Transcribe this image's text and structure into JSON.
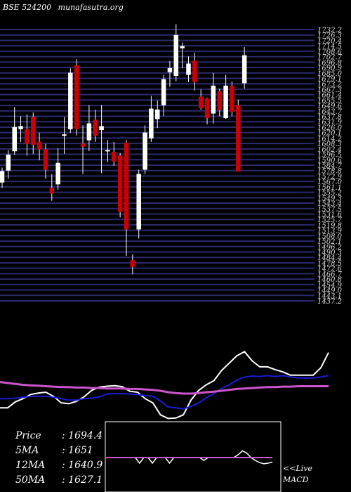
{
  "header": {
    "exchange_code": "BSE 524200",
    "site": "munafasutra.org"
  },
  "stats": [
    {
      "label": "Price",
      "value": "1694.4"
    },
    {
      "label": "5MA",
      "value": "1651"
    },
    {
      "label": "12MA",
      "value": "1640.9"
    },
    {
      "label": "50MA",
      "value": "1627.1"
    }
  ],
  "macd_label": {
    "line1": "<<Live",
    "line2": "MACD"
  },
  "colors": {
    "background": "#000000",
    "grid": "#2b2b6e",
    "up_candle": "#ffffff",
    "down_candle": "#cc0000",
    "ma_short": "#ffffff",
    "ma_mid": "#1b1bd6",
    "ma_long": "#cc55cc",
    "macd_box": "#ffffff"
  },
  "chart_data": [
    {
      "type": "candlestick",
      "title": "",
      "y_ticks": [
        "1732.2",
        "1726.3",
        "1720.4",
        "1714.5",
        "1708.6",
        "1702.7",
        "1696.8",
        "1690.9",
        "1685.0",
        "1679.1",
        "1673.2",
        "1667.3",
        "1661.4",
        "1655.5",
        "1649.6",
        "1643.7",
        "1637.8",
        "1631.9",
        "1626.0",
        "1620.1",
        "1614.2",
        "1608.3",
        "1602.4",
        "1596.5",
        "1590.6",
        "1584.7",
        "1578.8",
        "1572.9",
        "1567.0",
        "1561.1",
        "1555.2",
        "1549.3",
        "1543.4",
        "1537.5",
        "1531.6",
        "1525.7",
        "1519.8",
        "1513.9",
        "1508.0",
        "1502.1",
        "1496.2",
        "1490.3",
        "1484.4",
        "1478.5",
        "1472.6",
        "1466.7",
        "1460.8",
        "1454.9",
        "1449.0",
        "1443.1",
        "1437.2"
      ],
      "ylim": [
        1437.2,
        1732.2
      ],
      "candles": [
        {
          "open": 1566,
          "close": 1578,
          "high": 1582,
          "low": 1560
        },
        {
          "open": 1579,
          "close": 1596,
          "high": 1601,
          "low": 1570
        },
        {
          "open": 1600,
          "close": 1626,
          "high": 1648,
          "low": 1596
        },
        {
          "open": 1624,
          "close": 1627,
          "high": 1638,
          "low": 1610
        },
        {
          "open": 1624,
          "close": 1608,
          "high": 1640,
          "low": 1595
        },
        {
          "open": 1637,
          "close": 1607,
          "high": 1642,
          "low": 1597
        },
        {
          "open": 1610,
          "close": 1602,
          "high": 1620,
          "low": 1590
        },
        {
          "open": 1602,
          "close": 1580,
          "high": 1608,
          "low": 1570
        },
        {
          "open": 1560,
          "close": 1554,
          "high": 1575,
          "low": 1546
        },
        {
          "open": 1564,
          "close": 1587,
          "high": 1603,
          "low": 1558
        },
        {
          "open": 1617,
          "close": 1618,
          "high": 1637,
          "low": 1597
        },
        {
          "open": 1624,
          "close": 1685,
          "high": 1690,
          "low": 1620
        },
        {
          "open": 1693,
          "close": 1624,
          "high": 1700,
          "low": 1617
        },
        {
          "open": 1608,
          "close": 1605,
          "high": 1628,
          "low": 1575
        },
        {
          "open": 1612,
          "close": 1630,
          "high": 1650,
          "low": 1600
        },
        {
          "open": 1634,
          "close": 1617,
          "high": 1645,
          "low": 1610
        },
        {
          "open": 1623,
          "close": 1627,
          "high": 1650,
          "low": 1576
        },
        {
          "open": 1600,
          "close": 1601,
          "high": 1612,
          "low": 1588
        },
        {
          "open": 1599,
          "close": 1589,
          "high": 1610,
          "low": 1584
        },
        {
          "open": 1595,
          "close": 1534,
          "high": 1598,
          "low": 1528
        },
        {
          "open": 1609,
          "close": 1515,
          "high": 1612,
          "low": 1486
        },
        {
          "open": 1481,
          "close": 1474,
          "high": 1488,
          "low": 1466
        },
        {
          "open": 1515,
          "close": 1575,
          "high": 1580,
          "low": 1505
        },
        {
          "open": 1580,
          "close": 1620,
          "high": 1628,
          "low": 1575
        },
        {
          "open": 1614,
          "close": 1646,
          "high": 1660,
          "low": 1610
        },
        {
          "open": 1635,
          "close": 1645,
          "high": 1655,
          "low": 1625
        },
        {
          "open": 1650,
          "close": 1678,
          "high": 1683,
          "low": 1638
        },
        {
          "open": 1686,
          "close": 1690,
          "high": 1698,
          "low": 1670
        },
        {
          "open": 1682,
          "close": 1726,
          "high": 1738,
          "low": 1676
        },
        {
          "open": 1712,
          "close": 1714,
          "high": 1718,
          "low": 1690
        },
        {
          "open": 1683,
          "close": 1695,
          "high": 1703,
          "low": 1675
        },
        {
          "open": 1698,
          "close": 1675,
          "high": 1707,
          "low": 1666
        },
        {
          "open": 1659,
          "close": 1647,
          "high": 1667,
          "low": 1645
        },
        {
          "open": 1657,
          "close": 1636,
          "high": 1658,
          "low": 1629
        },
        {
          "open": 1641,
          "close": 1671,
          "high": 1685,
          "low": 1630
        },
        {
          "open": 1665,
          "close": 1645,
          "high": 1668,
          "low": 1638
        },
        {
          "open": 1636,
          "close": 1671,
          "high": 1683,
          "low": 1635
        },
        {
          "open": 1671,
          "close": 1643,
          "high": 1676,
          "low": 1638
        },
        {
          "open": 1650,
          "close": 1578,
          "high": 1656,
          "low": 1578
        },
        {
          "open": 1674,
          "close": 1704,
          "high": 1713,
          "low": 1668
        }
      ]
    },
    {
      "type": "line",
      "title": "",
      "series": [
        {
          "values": [
            1580,
            1580,
            1593,
            1600,
            1609,
            1612,
            1614,
            1605,
            1591,
            1589,
            1594,
            1604,
            1618,
            1625,
            1627,
            1628,
            1626,
            1616,
            1614,
            1600,
            1591,
            1565,
            1557,
            1558,
            1565,
            1597,
            1618,
            1630,
            1639,
            1661,
            1677,
            1693,
            1702,
            1682,
            1669,
            1669,
            1663,
            1658,
            1651,
            1651,
            1651,
            1651,
            1667,
            1700
          ]
        },
        {
          "values": [
            1600,
            1600,
            1601,
            1603,
            1605,
            1605,
            1605,
            1603,
            1600,
            1597,
            1597,
            1600,
            1601,
            1604,
            1610,
            1611,
            1611,
            1610,
            1609,
            1607,
            1605,
            1595,
            1582,
            1580,
            1578,
            1583,
            1591,
            1602,
            1611,
            1622,
            1630,
            1640,
            1647,
            1649,
            1648,
            1650,
            1648,
            1650,
            1647,
            1645,
            1645,
            1645,
            1647,
            1650
          ]
        },
        {
          "values": [
            1636,
            1634,
            1632,
            1630,
            1629,
            1628,
            1627,
            1626,
            1625,
            1625,
            1624,
            1624,
            1623,
            1623,
            1622,
            1622,
            1622,
            1621,
            1621,
            1620,
            1619,
            1617,
            1614,
            1612,
            1611,
            1611,
            1612,
            1614,
            1615,
            1617,
            1619,
            1621,
            1622,
            1623,
            1624,
            1625,
            1625,
            1626,
            1626,
            1627,
            1627,
            1627,
            1627,
            1627
          ]
        }
      ]
    },
    {
      "type": "line",
      "title": "",
      "series": [
        {
          "values": [
            0,
            0,
            0,
            0,
            0,
            0,
            0,
            0,
            -1.0,
            0,
            0,
            -1.0,
            0,
            0,
            0,
            -1.0,
            0,
            0,
            0,
            0,
            0,
            0,
            0,
            -0.5,
            0,
            0,
            0,
            0,
            0,
            0,
            0,
            0.5,
            1.2,
            0.8,
            0,
            -0.5,
            -0.9,
            -1.1,
            -1.0,
            -0.8
          ]
        },
        {
          "values": [
            0,
            0,
            0,
            0,
            0,
            0,
            0,
            0,
            0,
            0,
            0,
            0,
            0,
            0,
            0,
            0,
            0,
            0,
            0,
            0,
            0,
            0,
            0,
            0,
            0,
            0,
            0,
            0,
            0,
            0,
            0,
            0,
            0,
            0,
            0,
            0,
            0,
            0,
            0,
            0
          ]
        }
      ]
    }
  ]
}
